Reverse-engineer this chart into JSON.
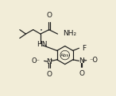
{
  "bg_color": "#f2edd8",
  "line_color": "#1a1a1a",
  "text_color": "#1a1a1a",
  "figsize": [
    1.46,
    1.22
  ],
  "dpi": 100,
  "lw": 0.85
}
